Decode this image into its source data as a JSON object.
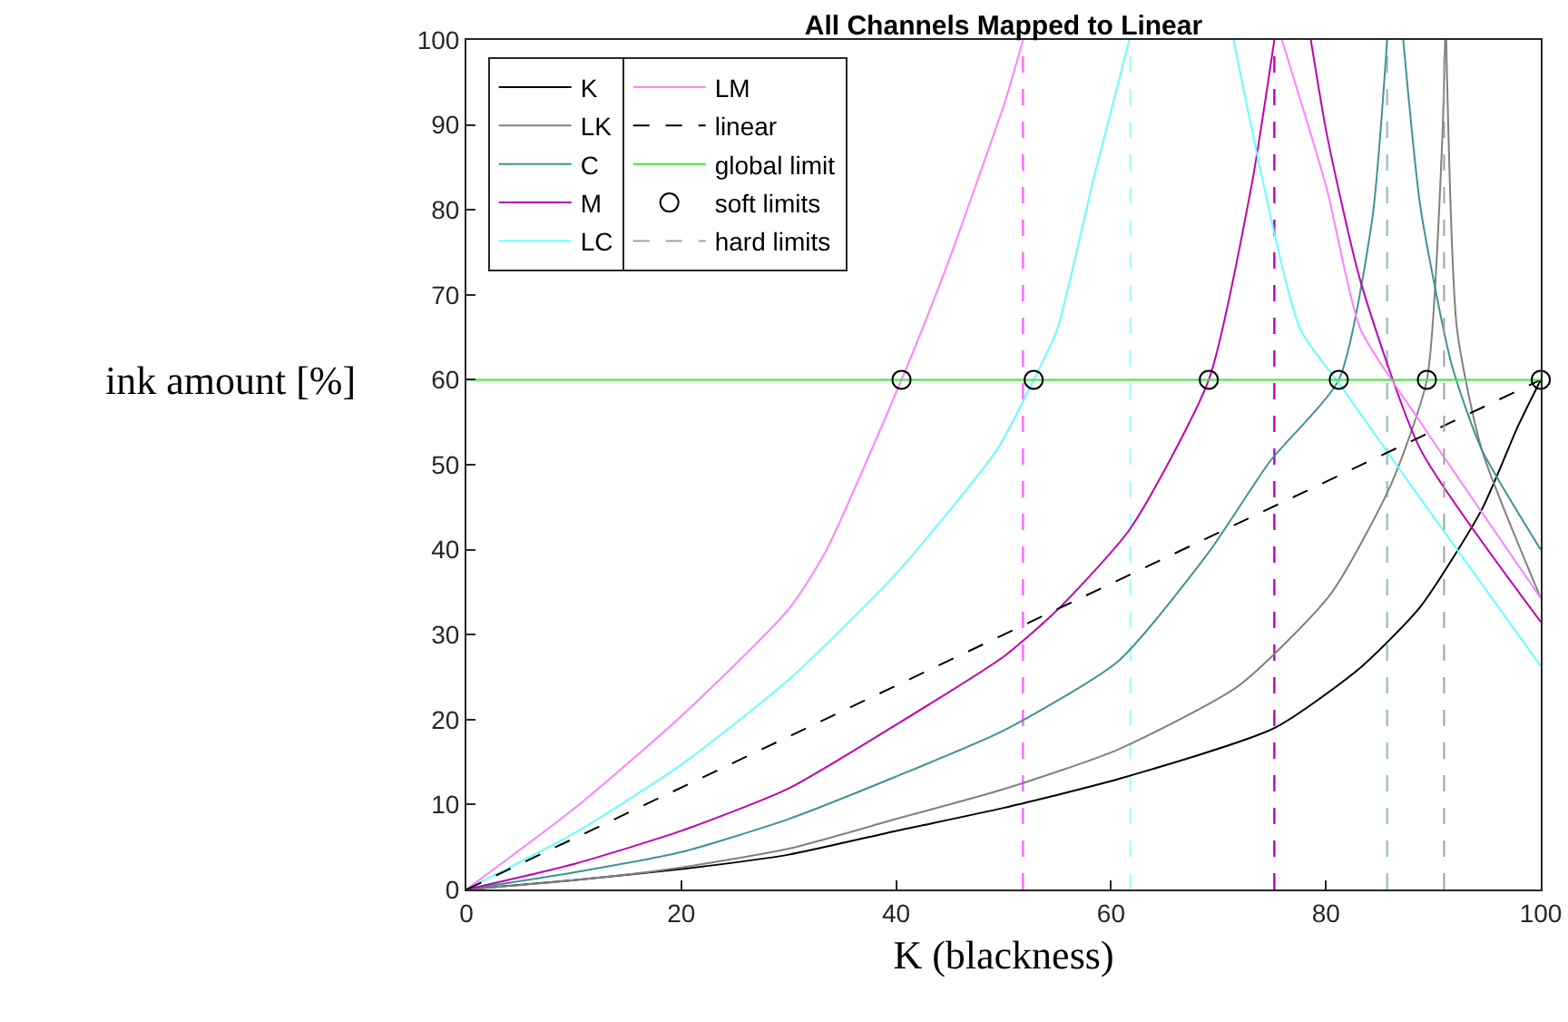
{
  "chart_data": {
    "type": "line",
    "title": "All Channels Mapped to Linear",
    "xlabel": "K (blackness)",
    "ylabel": "ink amount [%]",
    "xlim": [
      0,
      100
    ],
    "ylim": [
      0,
      100
    ],
    "xticks": [
      0,
      20,
      40,
      60,
      80,
      100
    ],
    "yticks": [
      0,
      10,
      20,
      30,
      40,
      50,
      60,
      70,
      80,
      90,
      100
    ],
    "grid": false,
    "legend": "top left",
    "series": [
      {
        "name": "K",
        "color": "#000000",
        "x": [
          0,
          10,
          20,
          30,
          40,
          50,
          60.7,
          75.2,
          83.2,
          88.8,
          94.5,
          97.9,
          100
        ],
        "values": [
          0,
          1.1,
          2.4,
          4.1,
          6.9,
          9.6,
          13,
          19,
          26.1,
          33.3,
          44.7,
          54.6,
          60
        ]
      },
      {
        "name": "LK",
        "color": "#808080",
        "x": [
          0,
          10,
          20,
          30,
          40,
          50,
          60.7,
          71.9,
          80.4,
          86,
          89.4,
          90.8,
          91.1,
          null,
          91.2,
          92.2,
          94.5,
          100
        ],
        "values": [
          0,
          1.1,
          2.6,
          4.8,
          8.3,
          11.8,
          16.5,
          24,
          34.7,
          47.5,
          60,
          87.4,
          100,
          null,
          100,
          66,
          51.8,
          34.3
        ]
      },
      {
        "name": "C",
        "color": "#3f9393",
        "x": [
          0,
          10,
          20,
          30,
          40,
          50,
          60.7,
          69.1,
          74.8,
          81.2,
          84.3,
          85.7,
          null,
          87.2,
          88.8,
          91.7,
          94.5,
          100
        ],
        "values": [
          0,
          2,
          4.4,
          8.3,
          13.3,
          18.7,
          26.9,
          39.7,
          50.4,
          60,
          78.8,
          100,
          null,
          100,
          80.3,
          61.8,
          51.8,
          40
        ]
      },
      {
        "name": "M",
        "color": "#c000b0",
        "x": [
          0,
          10,
          20,
          30,
          40,
          50,
          55,
          61.8,
          69.1,
          73.1,
          75.2,
          null,
          78.6,
          80.1,
          83.2,
          88.8,
          100
        ],
        "values": [
          0,
          3,
          6.9,
          11.9,
          19.4,
          27.4,
          32.9,
          42.5,
          60,
          83,
          100,
          null,
          100,
          88.8,
          71.7,
          51.8,
          31.5
        ]
      },
      {
        "name": "LC",
        "color": "#66ffff",
        "x": [
          0,
          10,
          20,
          30,
          40,
          49.4,
          52.8,
          55,
          58.4,
          61.7,
          null,
          71.4,
          77.6,
          81.2,
          88.8,
          100
        ],
        "values": [
          0,
          6.6,
          14.7,
          24.7,
          37.2,
          51.8,
          60,
          66,
          83.8,
          100,
          null,
          100,
          66,
          59.6,
          46,
          26.3
        ]
      },
      {
        "name": "LM",
        "color": "#ff80ff",
        "x": [
          0,
          10,
          20,
          30,
          33.4,
          40.5,
          44.6,
          48,
          50.2,
          51.8,
          null,
          75.9,
          80.1,
          83.2,
          88.8,
          100
        ],
        "values": [
          0,
          9.5,
          20.4,
          33,
          39.7,
          60,
          73,
          85,
          93,
          100,
          null,
          100,
          82.4,
          66,
          55,
          34.3
        ]
      },
      {
        "name": "linear",
        "color": "#000000",
        "line_style": "dashed",
        "x": [
          0,
          100
        ],
        "values": [
          0,
          60
        ]
      },
      {
        "name": "global limit",
        "color": "#33ee33",
        "x": [
          0,
          100
        ],
        "values": [
          60,
          60
        ]
      },
      {
        "name": "soft limits",
        "type": "scatter",
        "marker": "circle",
        "color": "#000000",
        "x": [
          40.5,
          52.8,
          69.1,
          81.2,
          89.4,
          100
        ],
        "values": [
          60,
          60,
          60,
          60,
          60,
          60
        ]
      },
      {
        "name": "hard limits",
        "color": "#a0a0a0",
        "line_style": "dashed",
        "x": [
          91.0,
          91.0
        ],
        "values": [
          0,
          100
        ]
      }
    ],
    "ref_lines": [
      {
        "axis": "x",
        "value": 51.8,
        "color": "#ff66ff",
        "line_style": "dashed"
      },
      {
        "axis": "x",
        "value": 61.8,
        "color": "#aaffff",
        "line_style": "dashed"
      },
      {
        "axis": "x",
        "value": 75.2,
        "color": "#c000c0",
        "line_style": "dashed"
      },
      {
        "axis": "x",
        "value": 85.7,
        "color": "#99c4c4",
        "line_style": "dashed"
      }
    ]
  }
}
